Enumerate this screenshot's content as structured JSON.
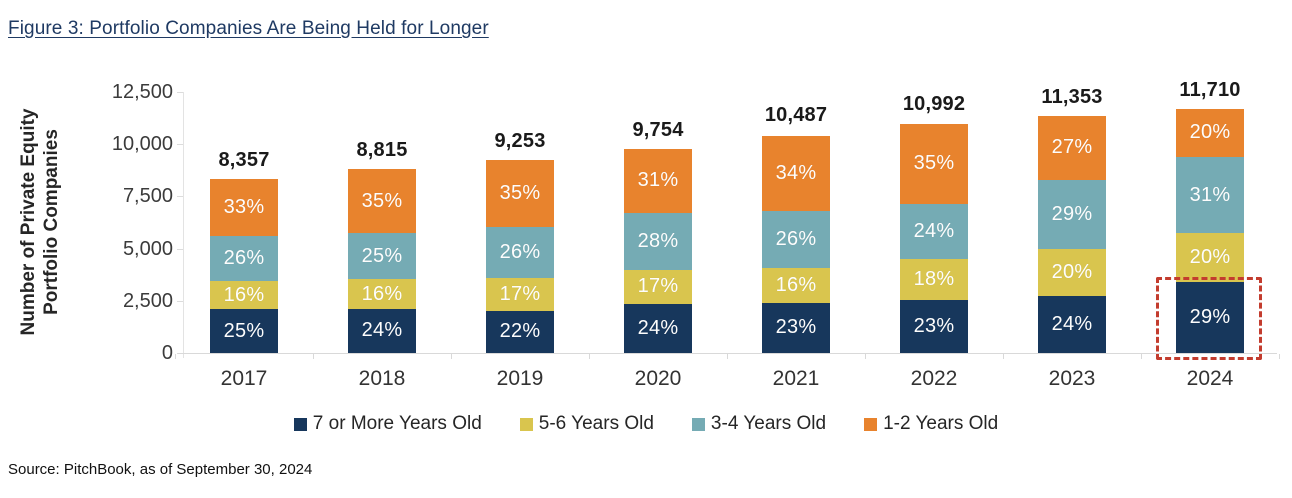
{
  "figure": {
    "title": "Figure 3: Portfolio Companies Are Being Held for Longer",
    "source": "Source: PitchBook, as of September 30, 2024"
  },
  "chart_data": {
    "type": "stacked-bar",
    "title": "Figure 3: Portfolio Companies Are Being Held for Longer",
    "ylabel": "Number of Private Equity Portfolio Companies",
    "ylabel_lines": "Number of Private Equity\nPortfolio Companies",
    "ylim": [
      0,
      12500
    ],
    "ytick_labels": [
      "12,500",
      "10,000",
      "7,500",
      "5,000",
      "2,500",
      "0"
    ],
    "ytick_values": [
      12500,
      10000,
      7500,
      5000,
      2500,
      0
    ],
    "grid": false,
    "legend_position": "bottom",
    "categories": [
      "2017",
      "2018",
      "2019",
      "2020",
      "2021",
      "2022",
      "2023",
      "2024"
    ],
    "totals": [
      8357,
      8815,
      9253,
      9754,
      10487,
      10992,
      11353,
      11710
    ],
    "total_labels": [
      "8,357",
      "8,815",
      "9,253",
      "9,754",
      "10,487",
      "10,992",
      "11,353",
      "11,710"
    ],
    "value_unit": "%",
    "series": [
      {
        "name": "7 or More Years Old",
        "color": "#17375C",
        "values": [
          25,
          24,
          22,
          24,
          23,
          23,
          24,
          29
        ]
      },
      {
        "name": "5-6 Years Old",
        "color": "#D9C54E",
        "values": [
          16,
          16,
          17,
          17,
          16,
          18,
          20,
          20
        ]
      },
      {
        "name": "3-4 Years Old",
        "color": "#75ABB4",
        "values": [
          26,
          25,
          26,
          28,
          26,
          24,
          29,
          31
        ]
      },
      {
        "name": "1-2 Years Old",
        "color": "#E8832D",
        "values": [
          33,
          35,
          35,
          31,
          34,
          35,
          27,
          20
        ]
      }
    ],
    "highlight": {
      "category": "2024",
      "series": "7 or More Years Old",
      "style": "red-dashed-outline",
      "color": "#C33C2E"
    }
  }
}
